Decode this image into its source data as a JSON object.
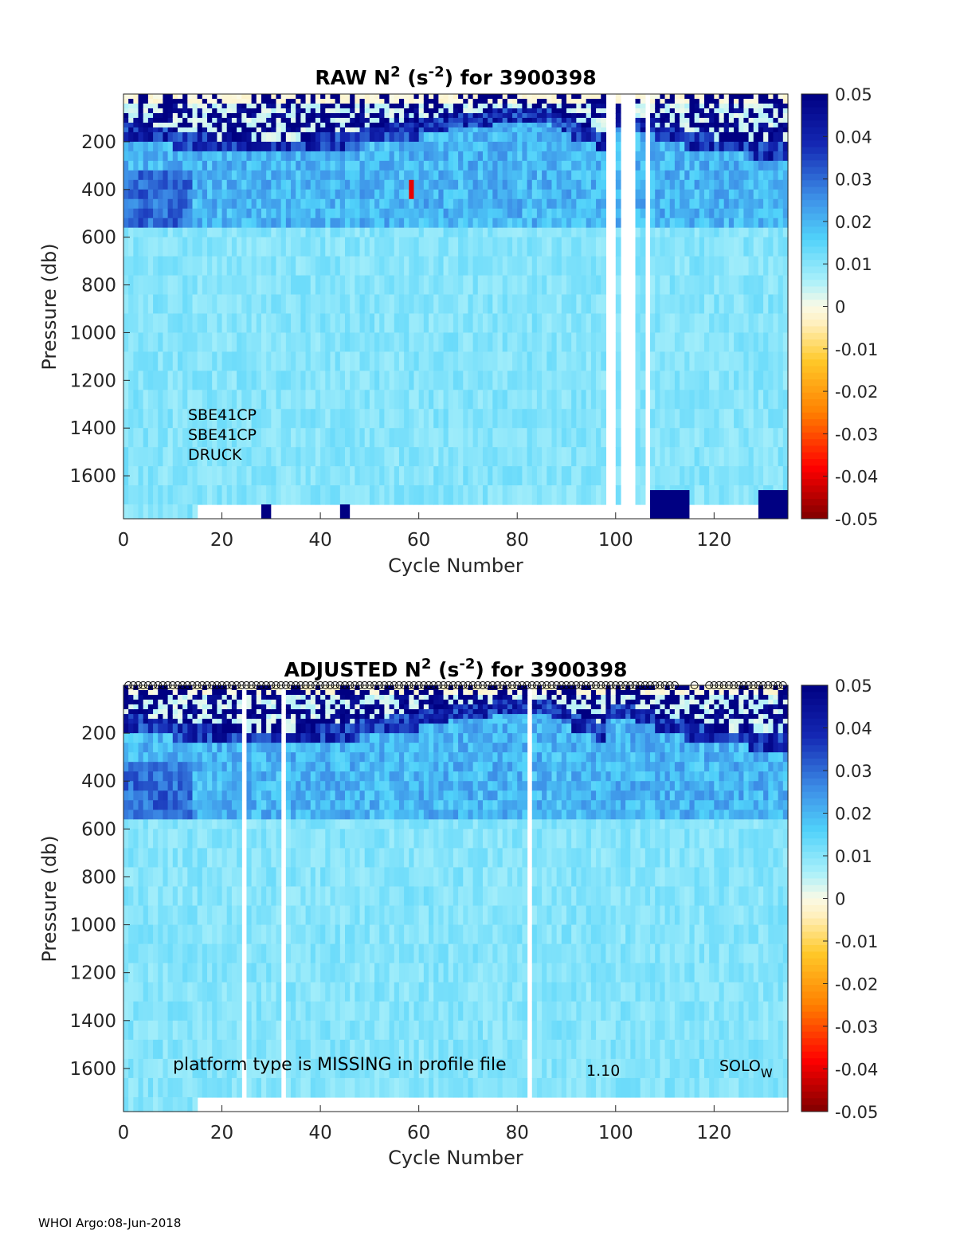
{
  "footer": "WHOI Argo:08-Jun-2018",
  "chart_data": [
    {
      "type": "heatmap",
      "title_prefix": "RAW N",
      "title_sup1": "2",
      "title_mid": " (s",
      "title_sup2": "-2",
      "title_suffix": ") for 3900398",
      "xlabel": "Cycle Number",
      "ylabel": "Pressure (db)",
      "xlim": [
        0,
        135
      ],
      "ylim": [
        1780,
        0
      ],
      "xticks": [
        0,
        20,
        40,
        60,
        80,
        100,
        120
      ],
      "yticks": [
        200,
        400,
        600,
        800,
        1000,
        1200,
        1400,
        1600
      ],
      "clim": [
        -0.05,
        0.05
      ],
      "cticks": [
        0.05,
        0.04,
        0.03,
        0.02,
        0.01,
        0,
        -0.01,
        -0.02,
        -0.03,
        -0.04,
        -0.05
      ],
      "annotations": [
        "SBE41CP",
        "SBE41CP",
        "DRUCK"
      ],
      "gap_cycles": [
        98,
        99,
        101,
        102,
        103,
        106
      ],
      "deep_strong_segments": [
        [
          28,
          30
        ],
        [
          44,
          46
        ],
        [
          107,
          115
        ],
        [
          129,
          135
        ]
      ],
      "spike": {
        "cycle": 58,
        "pressure": 380,
        "value": -0.04
      }
    },
    {
      "type": "heatmap",
      "title_prefix": "ADJUSTED N",
      "title_sup1": "2",
      "title_mid": " (s",
      "title_sup2": "-2",
      "title_suffix": ") for 3900398",
      "xlabel": "Cycle Number",
      "ylabel": "Pressure (db)",
      "xlim": [
        0,
        135
      ],
      "ylim": [
        1780,
        0
      ],
      "xticks": [
        0,
        20,
        40,
        60,
        80,
        100,
        120
      ],
      "yticks": [
        200,
        400,
        600,
        800,
        1000,
        1200,
        1400,
        1600
      ],
      "clim": [
        -0.05,
        0.05
      ],
      "cticks": [
        0.05,
        0.04,
        0.03,
        0.02,
        0.01,
        0,
        -0.01,
        -0.02,
        -0.03,
        -0.04,
        -0.05
      ],
      "platform_note": "platform type is MISSING in profile file",
      "version": "1.10",
      "float_type": "SOLO",
      "float_type_sub": "W",
      "gap_cycles": [
        24,
        32,
        82
      ],
      "qc_marker": "o"
    }
  ]
}
